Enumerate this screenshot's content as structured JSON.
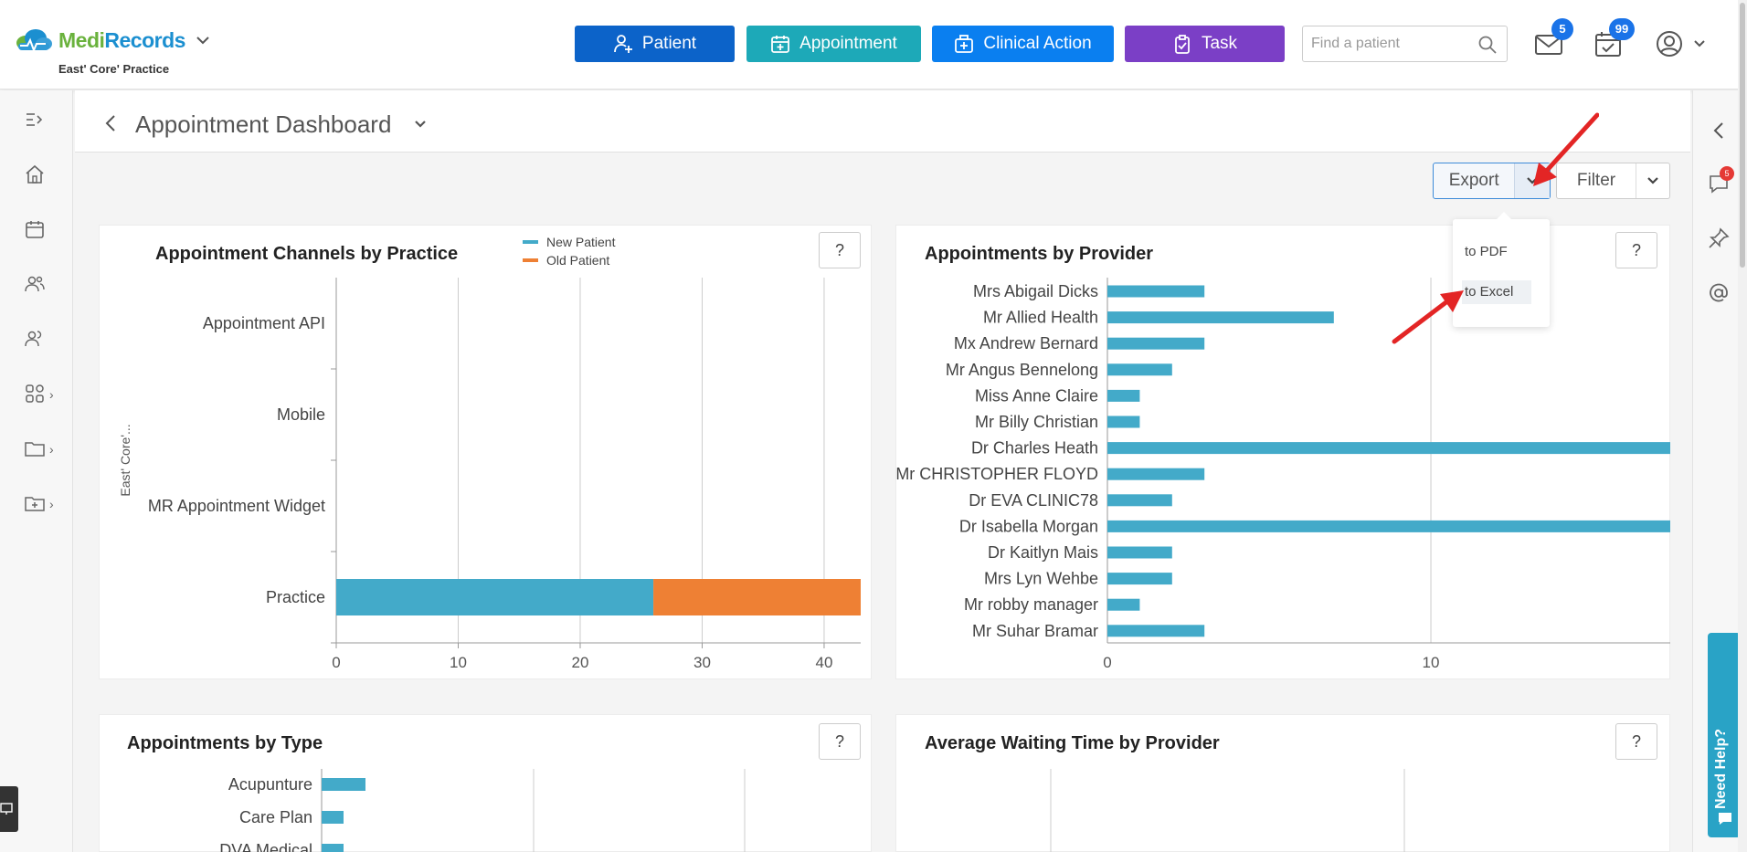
{
  "brand": {
    "name_part1": "Medi",
    "name_part2": "Records",
    "practice": "East' Core' Practice"
  },
  "quick_actions": [
    {
      "label": "Patient",
      "icon": "add-patient-icon",
      "color": "#0c63c9"
    },
    {
      "label": "Appointment",
      "icon": "calendar-plus-icon",
      "color": "#1da9b8"
    },
    {
      "label": "Clinical Action",
      "icon": "medical-kit-icon",
      "color": "#0a7ff0"
    },
    {
      "label": "Task",
      "icon": "clipboard-check-icon",
      "color": "#7b3fc6"
    }
  ],
  "search": {
    "placeholder": "Find a patient",
    "value": ""
  },
  "header_badges": {
    "mail": "5",
    "calendar": "99"
  },
  "right_sidebar": {
    "chat_badge": "5",
    "help_label": "Need Help?"
  },
  "page": {
    "title": "Appointment Dashboard"
  },
  "toolbar": {
    "export_label": "Export",
    "filter_label": "Filter"
  },
  "export_menu": {
    "items": [
      "to PDF",
      "to Excel"
    ],
    "hovered": "to Excel"
  },
  "cards": {
    "channels": {
      "title": "Appointment Channels by Practice",
      "help": "?"
    },
    "provider": {
      "title": "Appointments by Provider",
      "help": "?"
    },
    "type": {
      "title": "Appointments by Type",
      "help": "?"
    },
    "waiting": {
      "title": "Average Waiting Time by Provider",
      "help": "?"
    }
  },
  "chart_data": [
    {
      "type": "bar",
      "orientation": "horizontal",
      "stacked": true,
      "title": "Appointment Channels by Practice",
      "ylabel": "East' Core'...",
      "categories": [
        "Appointment API",
        "Mobile",
        "MR Appointment Widget",
        "Practice"
      ],
      "series": [
        {
          "name": "New Patient",
          "color": "#43aac9",
          "values": [
            0,
            0,
            0,
            26
          ]
        },
        {
          "name": "Old Patient",
          "color": "#ee8034",
          "values": [
            0,
            0,
            0,
            17
          ]
        }
      ],
      "xlim": [
        0,
        43
      ],
      "xticks": [
        0,
        10,
        20,
        30,
        40
      ],
      "legend": "top"
    },
    {
      "type": "bar",
      "orientation": "horizontal",
      "title": "Appointments by Provider",
      "categories": [
        "Mrs Abigail Dicks",
        "Mr Allied Health",
        "Mx Andrew Bernard",
        "Mr Angus Bennelong",
        "Miss Anne Claire",
        "Mr Billy Christian",
        "Dr Charles Heath",
        "Mr CHRISTOPHER FLOYD",
        "Dr EVA CLINIC78",
        "Dr Isabella Morgan",
        "Dr Kaitlyn Mais",
        "Mrs Lyn Wehbe",
        "Mr robby manager",
        "Mr Suhar Bramar"
      ],
      "values": [
        3,
        7,
        3,
        2,
        1,
        1,
        18,
        3,
        2,
        18,
        2,
        2,
        1,
        3
      ],
      "xlim": [
        0,
        17.4
      ],
      "xticks": [
        0,
        10
      ],
      "color": "#43aac9"
    },
    {
      "type": "bar",
      "orientation": "horizontal",
      "title": "Appointments by Type",
      "categories": [
        "Acupunture",
        "Care Plan",
        "DVA Medical"
      ],
      "values": [
        2,
        1,
        1
      ],
      "color": "#43aac9"
    }
  ]
}
